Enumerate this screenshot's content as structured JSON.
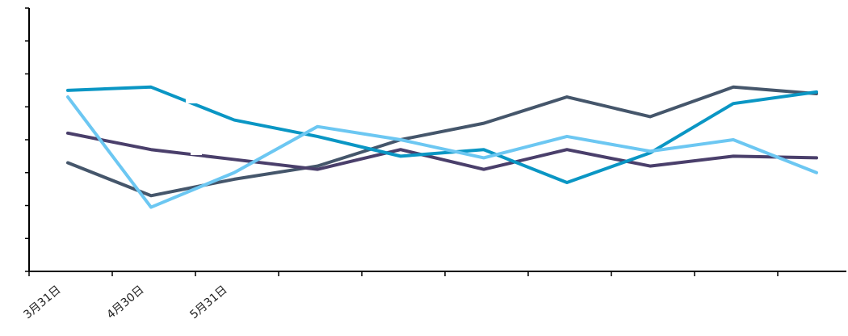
{
  "chart_data": {
    "type": "line",
    "title": "",
    "xlabel": "",
    "ylabel": "",
    "categories": [
      "3月31日",
      "4月30日",
      "5月31日",
      "",
      "",
      "",
      "",
      "",
      "",
      ""
    ],
    "ylim": [
      0,
      8
    ],
    "y_ticks": 9,
    "grid": false,
    "legend": "none",
    "series": [
      {
        "color": "#45566b",
        "values": [
          3.3,
          2.3,
          2.8,
          3.2,
          4.0,
          4.5,
          5.3,
          4.7,
          5.6,
          5.4
        ]
      },
      {
        "color": "#4a3f6b",
        "values": [
          4.2,
          3.7,
          3.4,
          3.1,
          3.7,
          3.1,
          3.7,
          3.2,
          3.5,
          3.45
        ]
      },
      {
        "color": "#0a96c4",
        "values": [
          5.5,
          5.6,
          4.6,
          4.1,
          3.5,
          3.7,
          2.7,
          3.6,
          5.1,
          5.45
        ]
      },
      {
        "color": "#6cc7f2",
        "values": [
          5.3,
          1.95,
          3.0,
          4.4,
          4.0,
          3.45,
          4.1,
          3.65,
          4.0,
          3.0
        ]
      }
    ]
  }
}
